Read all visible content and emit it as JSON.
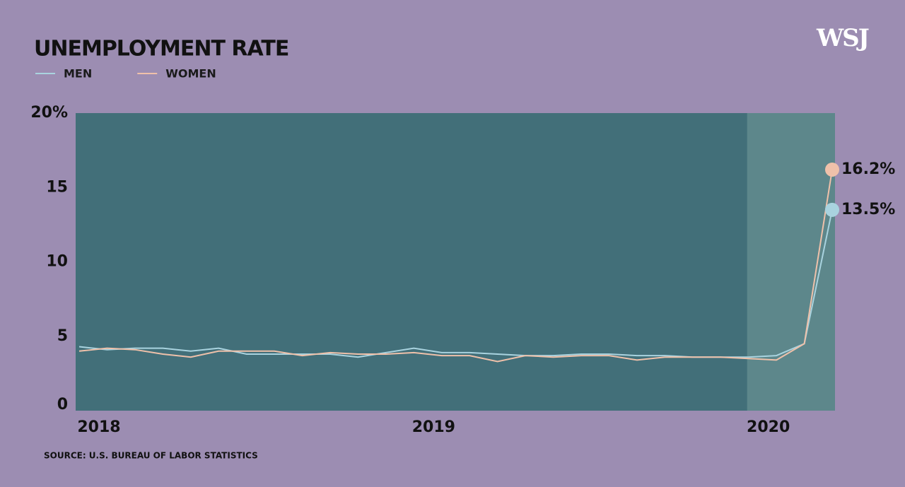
{
  "chart_data": {
    "type": "line",
    "title": "UNEMPLOYMENT RATE",
    "source": "SOURCE: U.S. BUREAU OF LABOR STATISTICS",
    "logo": "WSJ",
    "categories": [
      "2018",
      null,
      null,
      null,
      null,
      null,
      null,
      null,
      null,
      null,
      null,
      null,
      "2019",
      null,
      null,
      null,
      null,
      null,
      null,
      null,
      null,
      null,
      null,
      null,
      "2020",
      null,
      null,
      null
    ],
    "series": [
      {
        "name": "MEN",
        "color": "#a9d3df",
        "values": [
          4.3,
          4.1,
          4.2,
          4.2,
          4.0,
          4.2,
          3.8,
          3.8,
          3.8,
          3.8,
          3.6,
          3.9,
          4.2,
          3.9,
          3.9,
          3.8,
          3.7,
          3.7,
          3.8,
          3.8,
          3.7,
          3.7,
          3.6,
          3.6,
          3.6,
          3.7,
          4.5,
          13.5
        ],
        "value_labels": [
          null,
          null,
          null,
          null,
          null,
          null,
          null,
          null,
          null,
          null,
          null,
          null,
          null,
          null,
          null,
          null,
          null,
          null,
          null,
          null,
          null,
          null,
          null,
          null,
          null,
          null,
          null,
          "13.5%"
        ]
      },
      {
        "name": "WOMEN",
        "color": "#efc1aa",
        "values": [
          4.0,
          4.2,
          4.1,
          3.8,
          3.6,
          4.0,
          4.0,
          4.0,
          3.7,
          3.9,
          3.8,
          3.8,
          3.9,
          3.7,
          3.7,
          3.3,
          3.7,
          3.6,
          3.7,
          3.7,
          3.4,
          3.6,
          3.6,
          3.6,
          3.5,
          3.4,
          4.5,
          16.2
        ],
        "value_labels": [
          null,
          null,
          null,
          null,
          null,
          null,
          null,
          null,
          null,
          null,
          null,
          null,
          null,
          null,
          null,
          null,
          null,
          null,
          null,
          null,
          null,
          null,
          null,
          null,
          null,
          null,
          null,
          "16.2%"
        ]
      }
    ],
    "ylim": [
      0,
      20
    ],
    "yticks": [
      0,
      5,
      10,
      15,
      {
        "value": 20,
        "label": "20%"
      }
    ],
    "grid": false
  }
}
